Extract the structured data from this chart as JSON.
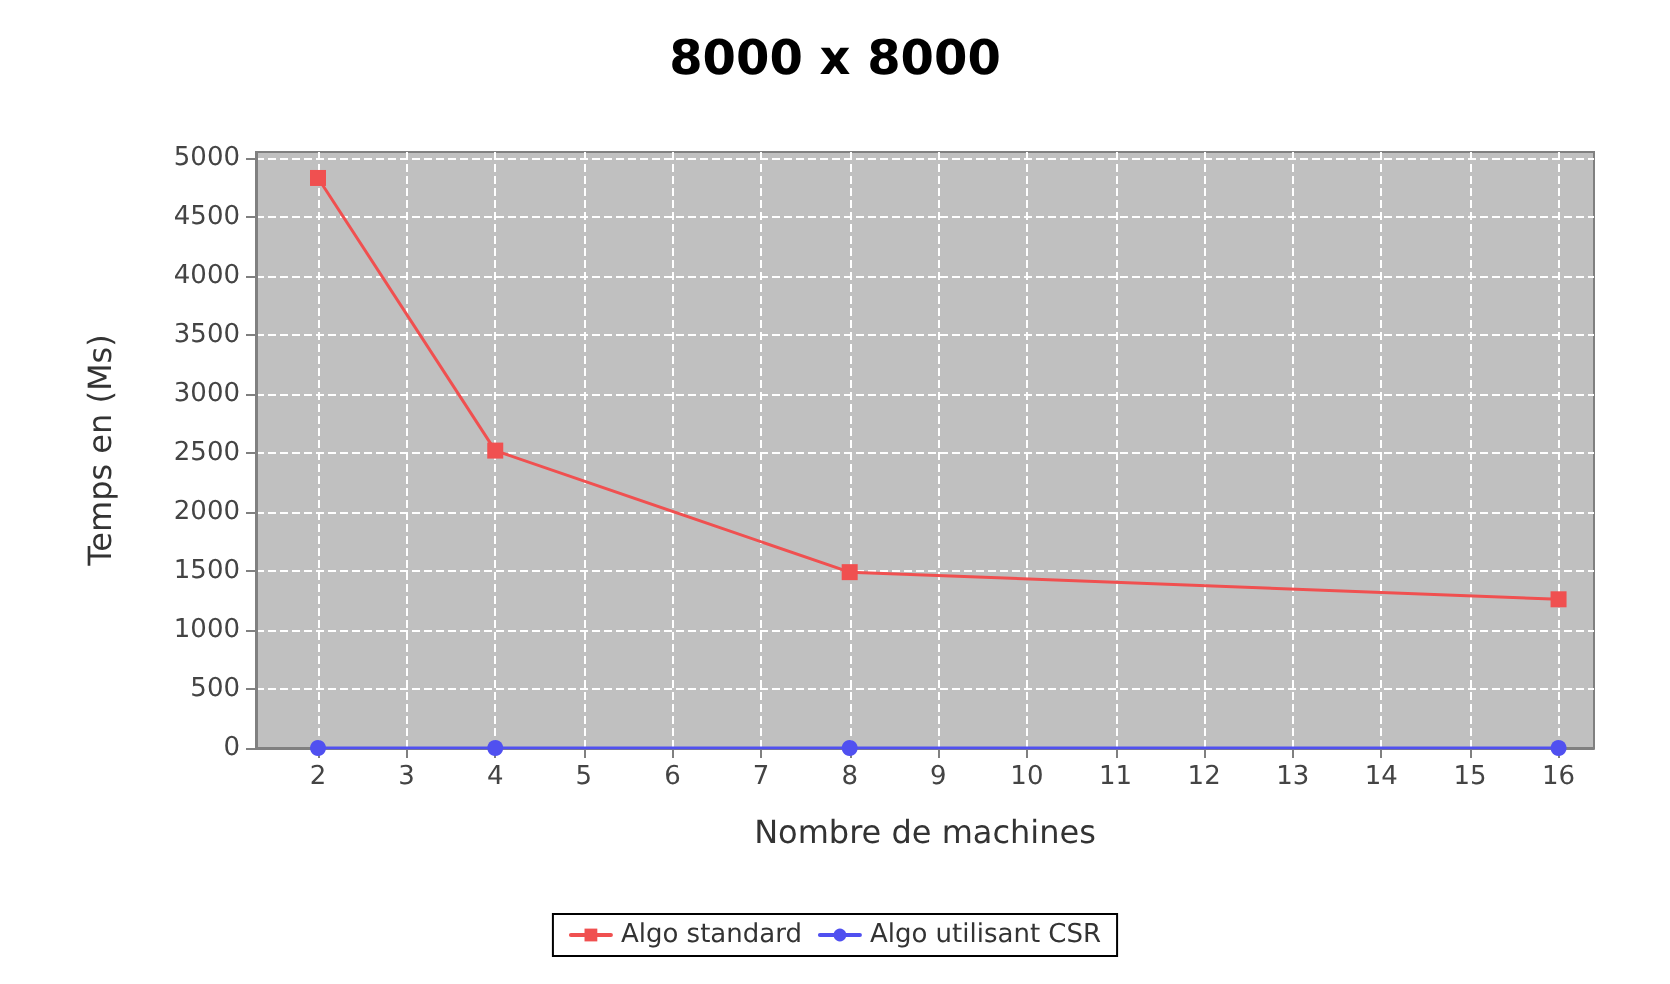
{
  "chart_data": {
    "type": "line",
    "title": "8000 x 8000",
    "xlabel": "Nombre de machines",
    "ylabel": "Temps en (Ms)",
    "x": [
      2,
      4,
      8,
      16
    ],
    "series": [
      {
        "name": "Algo standard",
        "color": "#f05050",
        "marker": "square",
        "values": [
          4830,
          2520,
          1490,
          1260
        ]
      },
      {
        "name": "Algo utilisant CSR",
        "color": "#5050f0",
        "marker": "circle",
        "values": [
          0,
          0,
          0,
          0
        ]
      }
    ],
    "xlim": [
      1.3,
      16.4
    ],
    "xticks": [
      2,
      3,
      4,
      5,
      6,
      7,
      8,
      9,
      10,
      11,
      12,
      13,
      14,
      15,
      16
    ],
    "ylim": [
      0,
      5050
    ],
    "yticks": [
      0,
      500,
      1000,
      1500,
      2000,
      2500,
      3000,
      3500,
      4000,
      4500,
      5000
    ],
    "grid": true,
    "legend": "bottom",
    "line_style": "solid"
  }
}
